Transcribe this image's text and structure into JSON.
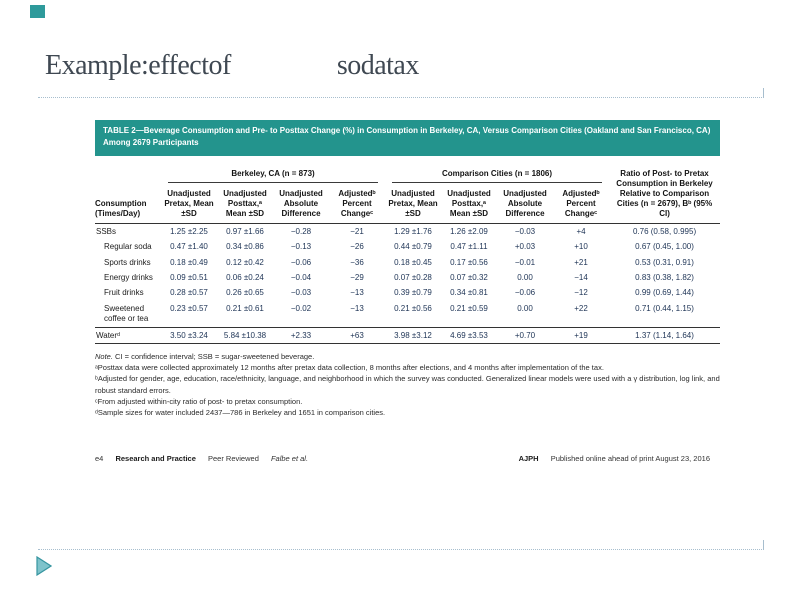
{
  "colors": {
    "accent_teal": "#2E9A9B",
    "table_header_teal": "#23948D",
    "separator": "#A7BECE"
  },
  "slide": {
    "title_part1": "Example:effectof",
    "title_part2": "sodatax"
  },
  "table": {
    "title_bar": "TABLE 2—Beverage Consumption and Pre- to Posttax Change (%) in Consumption in Berkeley, CA, Versus Comparison Cities (Oakland and San Francisco, CA) Among 2679 Participants",
    "stub_header": "Consumption (Times/Day)",
    "groups": [
      {
        "label": "Berkeley, CA (n = 873)",
        "cols": [
          "Unadjusted Pretax, Mean ±SD",
          "Unadjusted Posttax,ᵃ Mean ±SD",
          "Unadjusted Absolute Difference",
          "Adjustedᵇ Percent Changeᶜ"
        ]
      },
      {
        "label": "Comparison Cities (n = 1806)",
        "cols": [
          "Unadjusted Pretax, Mean ±SD",
          "Unadjusted Posttax,ᵃ Mean ±SD",
          "Unadjusted Absolute Difference",
          "Adjustedᵇ Percent Changeᶜ"
        ]
      }
    ],
    "ratio_header": "Ratio of Post- to Pretax Consumption in Berkeley Relative to Comparison Cities (n = 2679), Bᵇ (95% CI)",
    "rows": [
      {
        "label": "SSBs",
        "indent": false,
        "rule_above": false,
        "cells": [
          "1.25 ±2.25",
          "0.97 ±1.66",
          "−0.28",
          "−21",
          "1.29 ±1.76",
          "1.26 ±2.09",
          "−0.03",
          "+4",
          "0.76 (0.58, 0.995)"
        ]
      },
      {
        "label": "Regular soda",
        "indent": true,
        "rule_above": false,
        "cells": [
          "0.47 ±1.40",
          "0.34 ±0.86",
          "−0.13",
          "−26",
          "0.44 ±0.79",
          "0.47 ±1.11",
          "+0.03",
          "+10",
          "0.67 (0.45, 1.00)"
        ]
      },
      {
        "label": "Sports drinks",
        "indent": true,
        "rule_above": false,
        "cells": [
          "0.18 ±0.49",
          "0.12 ±0.42",
          "−0.06",
          "−36",
          "0.18 ±0.45",
          "0.17 ±0.56",
          "−0.01",
          "+21",
          "0.53 (0.31, 0.91)"
        ]
      },
      {
        "label": "Energy drinks",
        "indent": true,
        "rule_above": false,
        "cells": [
          "0.09 ±0.51",
          "0.06 ±0.24",
          "−0.04",
          "−29",
          "0.07 ±0.28",
          "0.07 ±0.32",
          "0.00",
          "−14",
          "0.83 (0.38, 1.82)"
        ]
      },
      {
        "label": "Fruit drinks",
        "indent": true,
        "rule_above": false,
        "cells": [
          "0.28 ±0.57",
          "0.26 ±0.65",
          "−0.03",
          "−13",
          "0.39 ±0.79",
          "0.34 ±0.81",
          "−0.06",
          "−12",
          "0.99 (0.69, 1.44)"
        ]
      },
      {
        "label": "Sweetened coffee or tea",
        "indent": true,
        "rule_above": false,
        "cells": [
          "0.23 ±0.57",
          "0.21 ±0.61",
          "−0.02",
          "−13",
          "0.21 ±0.56",
          "0.21 ±0.59",
          "0.00",
          "+22",
          "0.71 (0.44, 1.15)"
        ]
      },
      {
        "label": "Waterᵈ",
        "indent": false,
        "rule_above": true,
        "cells": [
          "3.50 ±3.24",
          "5.84 ±10.38",
          "+2.33",
          "+63",
          "3.98 ±3.12",
          "4.69 ±3.53",
          "+0.70",
          "+19",
          "1.37 (1.14, 1.64)"
        ]
      }
    ],
    "note_label": "Note.",
    "note_rest": " CI = confidence interval; SSB = sugar-sweetened beverage.",
    "footnotes": [
      "ᵃPosttax data were collected approximately 12 months after pretax data collection, 8 months after elections, and 4 months after implementation of the tax.",
      "ᵇAdjusted for gender, age, education, race/ethnicity, language, and neighborhood in which the survey was conducted. Generalized linear models were used with a γ distribution, log link, and robust standard errors.",
      "ᶜFrom adjusted within-city ratio of post- to pretax consumption.",
      "ᵈSample sizes for water included 2437—786 in Berkeley and 1651 in comparison cities."
    ],
    "page_footer": {
      "page": "e4",
      "section": "Research and Practice",
      "review": "Peer Reviewed",
      "authors": "Falbe et al.",
      "journal": "AJPH",
      "published": "Published online ahead of print August 23, 2016"
    }
  }
}
